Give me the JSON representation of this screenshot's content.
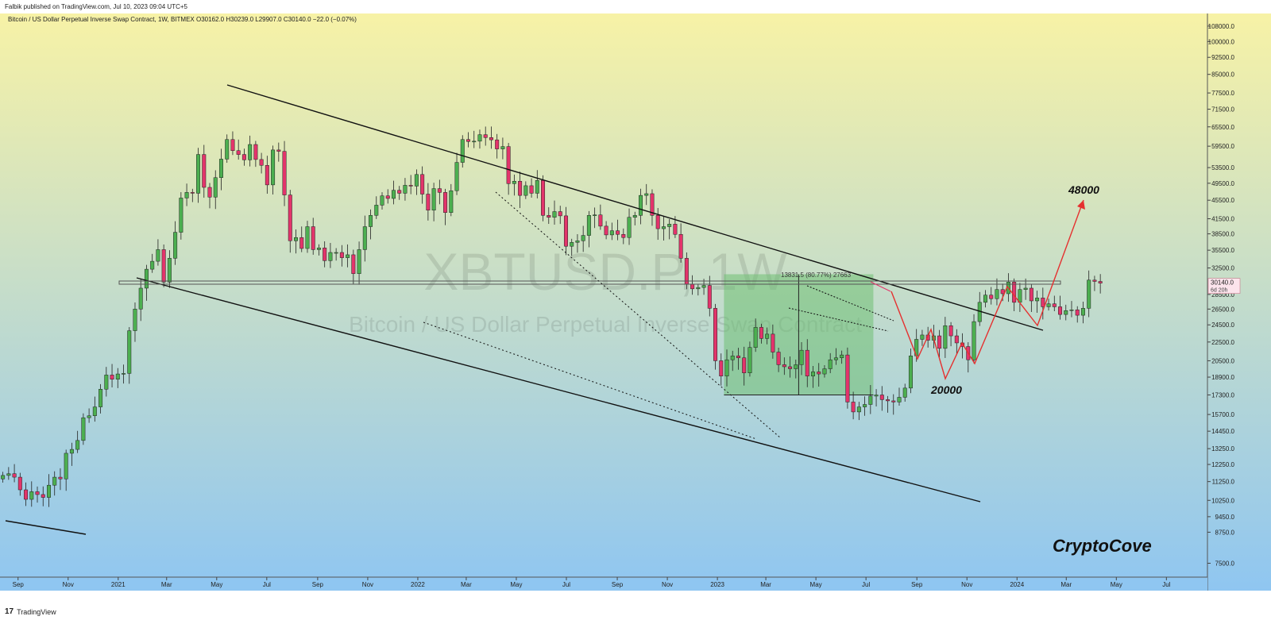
{
  "header": {
    "publisher_line": "Falbik published on TradingView.com, Jul 10, 2023 09:04 UTC+5",
    "symbol_line": "Bitcoin / US Dollar Perpetual Inverse Swap Contract, 1W, BITMEX  O30162.0  H30239.0  L29907.0  C30140.0  −22.0 (−0.07%)"
  },
  "footer": {
    "brand": "TradingView",
    "brand_mark": "17"
  },
  "colors": {
    "up": "#4caf50",
    "down": "#e3346b",
    "bg_top": "#f7f2a6",
    "bg_bottom": "#8fc6f1",
    "projection": "#e5302f",
    "box_fill": "#6fbf73",
    "current_price_bg": "#fce4ec"
  },
  "chart_data": {
    "type": "candlestick",
    "symbol": "XBTUSD.P",
    "interval": "1W",
    "watermark_symbol": "XBTUSD.P, 1W",
    "watermark_name": "Bitcoin / US Dollar Perpetual Inverse Swap Contract",
    "x_range": [
      "2020-08-10",
      "2024-08-20"
    ],
    "y_scale": "log",
    "y_range": [
      7000,
      115000
    ],
    "x_ticks": [
      {
        "date": "2020-09-01",
        "label": "Sep"
      },
      {
        "date": "2020-11-01",
        "label": "Nov"
      },
      {
        "date": "2021-01-01",
        "label": "2021"
      },
      {
        "date": "2021-03-01",
        "label": "Mar"
      },
      {
        "date": "2021-05-01",
        "label": "May"
      },
      {
        "date": "2021-07-01",
        "label": "Jul"
      },
      {
        "date": "2021-09-01",
        "label": "Sep"
      },
      {
        "date": "2021-11-01",
        "label": "Nov"
      },
      {
        "date": "2022-01-01",
        "label": "2022"
      },
      {
        "date": "2022-03-01",
        "label": "Mar"
      },
      {
        "date": "2022-05-01",
        "label": "May"
      },
      {
        "date": "2022-07-01",
        "label": "Jul"
      },
      {
        "date": "2022-09-01",
        "label": "Sep"
      },
      {
        "date": "2022-11-01",
        "label": "Nov"
      },
      {
        "date": "2023-01-01",
        "label": "2023"
      },
      {
        "date": "2023-03-01",
        "label": "Mar"
      },
      {
        "date": "2023-05-01",
        "label": "May"
      },
      {
        "date": "2023-07-01",
        "label": "Jul"
      },
      {
        "date": "2023-09-01",
        "label": "Sep"
      },
      {
        "date": "2023-11-01",
        "label": "Nov"
      },
      {
        "date": "2024-01-01",
        "label": "2024"
      },
      {
        "date": "2024-03-01",
        "label": "Mar"
      },
      {
        "date": "2024-05-01",
        "label": "May"
      },
      {
        "date": "2024-07-01",
        "label": "Jul"
      }
    ],
    "y_ticks": [
      7500,
      8750,
      9450,
      10250,
      11250,
      12250,
      13250,
      14450,
      15700,
      17300,
      18900,
      20500,
      22500,
      24500,
      26500,
      28500,
      30140,
      32500,
      35500,
      38500,
      41500,
      45500,
      49500,
      53500,
      59500,
      65500,
      71500,
      77500,
      85000,
      92500,
      100000,
      108000
    ],
    "y_tick_labels": [
      "7500.0",
      "8750.0",
      "9450.0",
      "10250.0",
      "11250.0",
      "12250.0",
      "13250.0",
      "14450.0",
      "15700.0",
      "17300.0",
      "18900.0",
      "20500.0",
      "22500.0",
      "24500.0",
      "26500.0",
      "28500.0",
      "30140.0",
      "32500.0",
      "35500.0",
      "38500.0",
      "41500.0",
      "45500.0",
      "49500.0",
      "53500.0",
      "59500.0",
      "65500.0",
      "71500.0",
      "77500.0",
      "85000.0",
      "92500.0",
      "100000.0",
      "108000.0"
    ],
    "current_price": {
      "value": 30140,
      "label": "30140.0",
      "countdown": "6d 20h"
    },
    "closes": [
      11600,
      11700,
      11500,
      10800,
      10300,
      10700,
      10550,
      10400,
      11050,
      11500,
      11400,
      12950,
      13200,
      13800,
      15450,
      15600,
      16300,
      17800,
      19100,
      18700,
      19200,
      19250,
      23800,
      26500,
      29400,
      32300,
      33600,
      35600,
      30300,
      34100,
      38800,
      46000,
      47300,
      47100,
      57100,
      48500,
      46200,
      50900,
      55800,
      61500,
      58200,
      57100,
      55600,
      60000,
      55700,
      54100,
      49100,
      58400,
      58000,
      46700,
      37200,
      37800,
      35800,
      39900,
      35600,
      35900,
      33700,
      35100,
      35100,
      34200,
      34700,
      31600,
      35600,
      39900,
      42200,
      44400,
      46500,
      45900,
      47800,
      47100,
      49000,
      48800,
      51700,
      46900,
      43300,
      48200,
      47300,
      42800,
      47700,
      54900,
      61500,
      60900,
      61000,
      63000,
      62100,
      61400,
      58700,
      59400,
      49400,
      50000,
      46600,
      48900,
      47100,
      50200,
      42200,
      41800,
      43000,
      42100,
      36200,
      36900,
      37200,
      38200,
      42200,
      42300,
      40000,
      38300,
      39100,
      38400,
      37800,
      41800,
      42200,
      46600,
      47000,
      42200,
      39500,
      39900,
      40400,
      38400,
      34100,
      30000,
      29300,
      29500,
      29800,
      26600,
      20500,
      19000,
      20600,
      21000,
      20800,
      19300,
      21900,
      24200,
      22900,
      23400,
      21400,
      20100,
      19900,
      19700,
      20100,
      21600,
      19000,
      19400,
      19200,
      19700,
      20600,
      20800,
      21100,
      16700,
      15900,
      16300,
      16500,
      17200,
      17300,
      16900,
      16800,
      16700,
      17100,
      17900,
      21000,
      22800,
      23300,
      22700,
      23200,
      21800,
      24400,
      23200,
      22400,
      22000,
      20600,
      24900,
      27400,
      28400,
      27900,
      29200,
      28600,
      30300,
      27400,
      29200,
      29400,
      27600,
      28000,
      26800,
      27200,
      26800,
      25800,
      26300,
      26400,
      25700,
      26600,
      30600,
      30400,
      30140
    ]
  },
  "annotations": {
    "range_label": "13831.5 (80.77%) 27663",
    "target_high": "48000",
    "target_low": "20000",
    "brand": "CryptoCove"
  }
}
